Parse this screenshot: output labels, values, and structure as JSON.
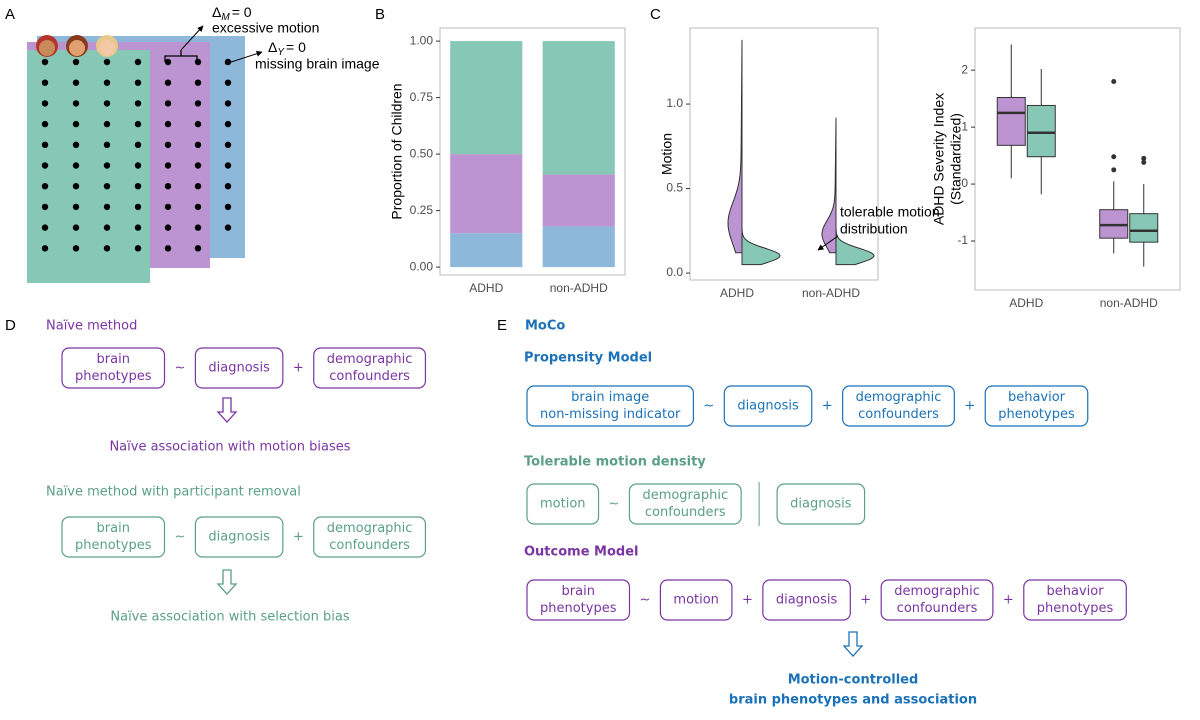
{
  "panel_labels": [
    "A",
    "B",
    "C",
    "D",
    "E"
  ],
  "illustration": {
    "annotations": [
      {
        "symbol": "Δ",
        "subscript": "M",
        "equals": "= 0",
        "text": "excessive motion"
      },
      {
        "symbol": "Δ",
        "subscript": "Y",
        "equals": "= 0",
        "text": "missing brain image"
      }
    ]
  },
  "chart_data": [
    {
      "type": "bar",
      "stacked": true,
      "ylabel": "Proportion of Children",
      "categories": [
        "ADHD",
        "non-ADHD"
      ],
      "series": [
        {
          "color": "#8db8da",
          "values": [
            0.15,
            0.18
          ]
        },
        {
          "color": "#bc94d1",
          "values": [
            0.35,
            0.23
          ]
        },
        {
          "color": "#86c7b5",
          "values": [
            0.5,
            0.59
          ]
        }
      ],
      "ylim": [
        -0.035,
        1.058
      ],
      "yticks": [
        {
          "value": 0,
          "label": "0.00"
        },
        {
          "value": 0.25,
          "label": "0.25"
        },
        {
          "value": 0.5,
          "label": "0.50"
        },
        {
          "value": 0.75,
          "label": "0.75"
        },
        {
          "value": 1,
          "label": "1.00"
        }
      ]
    },
    {
      "type": "violin",
      "ylabel": "Motion",
      "categories": [
        "ADHD",
        "non-ADHD"
      ],
      "series": [
        {
          "color": "#bc94d1",
          "values": [
            [
              0.12,
              1.38
            ],
            [
              0.12,
              0.92
            ]
          ]
        },
        {
          "color": "#86c7b5",
          "values": [
            [
              0.05,
              0.26
            ],
            [
              0.05,
              0.26
            ]
          ]
        }
      ],
      "ylim": [
        -0.041,
        1.45
      ],
      "yticks": [
        {
          "value": 0,
          "label": "0.0"
        },
        0.5,
        {
          "value": 1,
          "label": "1.0"
        }
      ],
      "annotation": [
        "tolerable motion",
        "distribution"
      ]
    },
    {
      "type": "box",
      "ylabel": [
        "ADHD Severity Index",
        "(Standardized)"
      ],
      "categories": [
        "ADHD",
        "non-ADHD"
      ],
      "series": [
        {
          "color": "#bc94d1",
          "values": [
            [
              0.1,
              0.68,
              1.25,
              1.52,
              2.45
            ],
            [
              -1.22,
              -0.95,
              -0.72,
              -0.45,
              0.05
            ]
          ],
          "outliers": [
            [],
            [
              1.8,
              0.48,
              0.25
            ]
          ]
        },
        {
          "color": "#86c7b5",
          "values": [
            [
              -0.18,
              0.48,
              0.9,
              1.38,
              2.02
            ],
            [
              -1.45,
              -1.02,
              -0.82,
              -0.52,
              0.0
            ]
          ],
          "outliers": [
            [],
            [
              0.45,
              0.38
            ]
          ]
        }
      ],
      "ylim": [
        -1.86,
        2.74
      ],
      "yticks": [
        -1,
        0,
        1,
        2
      ]
    }
  ],
  "naive": {
    "title": "Naïve method",
    "formula": [
      [
        "brain",
        "phenotypes"
      ],
      "~",
      [
        "diagnosis"
      ],
      "+",
      [
        "demographic",
        "confounders"
      ]
    ],
    "result": "Naïve association with motion biases"
  },
  "naive_removal": {
    "title": "Naïve method with participant removal",
    "formula": [
      [
        "brain",
        "phenotypes"
      ],
      "~",
      [
        "diagnosis"
      ],
      "+",
      [
        "demographic",
        "confounders"
      ]
    ],
    "result": "Naïve association with selection bias"
  },
  "moco": {
    "title": "MoCo",
    "propensity": {
      "title": "Propensity Model",
      "formula": [
        [
          "brain image",
          "non-missing indicator"
        ],
        "~",
        [
          "diagnosis"
        ],
        "+",
        [
          "demographic",
          "confounders"
        ],
        "+",
        [
          "behavior",
          "phenotypes"
        ]
      ]
    },
    "tolerable": {
      "title": "Tolerable motion density",
      "formula": [
        [
          "motion"
        ],
        "~",
        [
          "demographic",
          "confounders"
        ],
        [
          "diagnosis"
        ]
      ]
    },
    "outcome": {
      "title": "Outcome Model",
      "formula": [
        [
          "brain",
          "phenotypes"
        ],
        "~",
        [
          "motion"
        ],
        "+",
        [
          "diagnosis"
        ],
        "+",
        [
          "demographic",
          "confounders"
        ],
        "+",
        [
          "behavior",
          "phenotypes"
        ]
      ]
    },
    "result": [
      "Motion-controlled",
      "brain phenotypes and association"
    ]
  }
}
